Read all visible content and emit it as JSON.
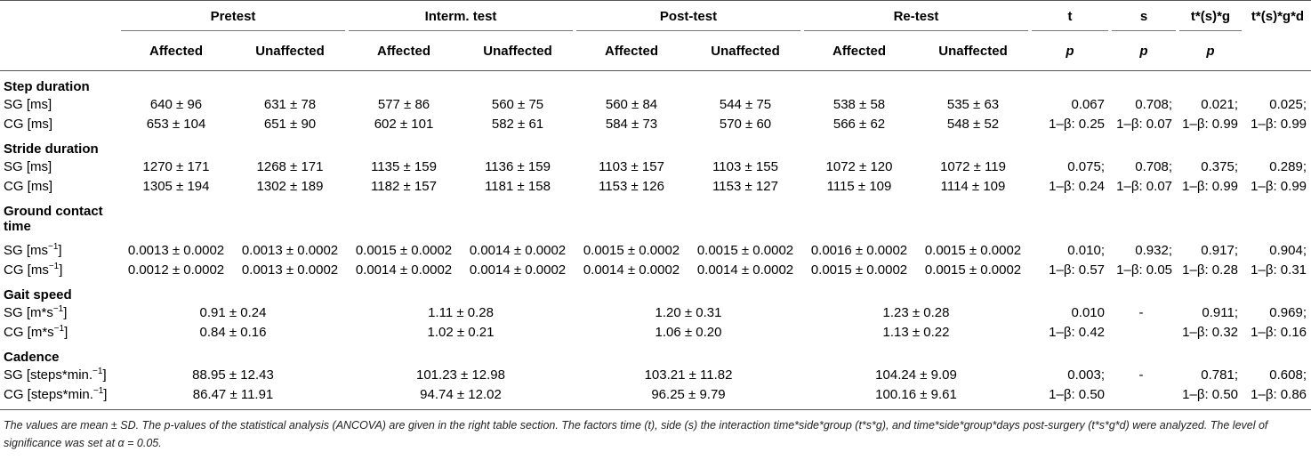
{
  "header": {
    "groups": [
      "Pretest",
      "Interm. test",
      "Post-test",
      "Re-test"
    ],
    "sub": [
      "Affected",
      "Unaffected"
    ],
    "stats": [
      "t",
      "s",
      "t*(s)*g",
      "t*(s)*g*d"
    ],
    "p_label": "p"
  },
  "sections": {
    "step": {
      "title": "Step duration",
      "rows": [
        {
          "label": "SG [ms]",
          "cells": [
            "640 ± 96",
            "631 ± 78",
            "577 ± 86",
            "560 ± 75",
            "560 ± 84",
            "544 ± 75",
            "538 ± 58",
            "535 ± 63"
          ],
          "stats": [
            "0.067",
            "0.708;",
            "0.021;",
            "0.025;"
          ]
        },
        {
          "label": "CG [ms]",
          "cells": [
            "653 ± 104",
            "651 ± 90",
            "602 ± 101",
            "582 ± 61",
            "584 ± 73",
            "570 ± 60",
            "566 ± 62",
            "548 ± 52"
          ],
          "stats": [
            "1–β: 0.25",
            "1–β: 0.07",
            "1–β: 0.99",
            "1–β: 0.99"
          ]
        }
      ]
    },
    "stride": {
      "title": "Stride duration",
      "rows": [
        {
          "label": "SG [ms]",
          "cells": [
            "1270 ± 171",
            "1268 ± 171",
            "1135 ± 159",
            "1136 ± 159",
            "1103 ± 157",
            "1103 ± 155",
            "1072 ± 120",
            "1072 ± 119"
          ],
          "stats": [
            "0.075;",
            "0.708;",
            "0.375;",
            "0.289;"
          ]
        },
        {
          "label": "CG [ms]",
          "cells": [
            "1305 ± 194",
            "1302 ± 189",
            "1182 ± 157",
            "1181 ± 158",
            "1153 ± 126",
            "1153 ± 127",
            "1115 ± 109",
            "1114 ± 109"
          ],
          "stats": [
            "1–β: 0.24",
            "1–β: 0.07",
            "1–β: 0.99",
            "1–β: 0.99"
          ]
        }
      ]
    },
    "contact": {
      "title_line1": "Ground contact",
      "title_line2": "time",
      "rows": [
        {
          "label": "SG [ms",
          "label_sup": "−1",
          "label_end": "]",
          "cells": [
            "0.0013 ± 0.0002",
            "0.0013 ± 0.0002",
            "0.0015 ± 0.0002",
            "0.0014 ± 0.0002",
            "0.0015 ± 0.0002",
            "0.0015 ± 0.0002",
            "0.0016 ± 0.0002",
            "0.0015 ± 0.0002"
          ],
          "stats": [
            "0.010;",
            "0.932;",
            "0.917;",
            "0.904;"
          ]
        },
        {
          "label": "CG [ms",
          "label_sup": "−1",
          "label_end": "]",
          "cells": [
            "0.0012 ± 0.0002",
            "0.0013 ± 0.0002",
            "0.0014 ± 0.0002",
            "0.0014 ± 0.0002",
            "0.0014 ± 0.0002",
            "0.0014 ± 0.0002",
            "0.0015 ± 0.0002",
            "0.0015 ± 0.0002"
          ],
          "stats": [
            "1–β: 0.57",
            "1–β: 0.05",
            "1–β: 0.28",
            "1–β: 0.31"
          ]
        }
      ]
    },
    "speed": {
      "title": "Gait speed",
      "rows": [
        {
          "label": "SG [m*s",
          "label_sup": "−1",
          "label_end": "]",
          "cells": [
            "0.91 ± 0.24",
            "1.11 ± 0.28",
            "1.20 ± 0.31",
            "1.23 ± 0.28"
          ],
          "stats": [
            "0.010",
            "-",
            "0.911;",
            "0.969;"
          ]
        },
        {
          "label": "CG [m*s",
          "label_sup": "−1",
          "label_end": "]",
          "cells": [
            "0.84 ± 0.16",
            "1.02 ± 0.21",
            "1.06 ± 0.20",
            "1.13 ± 0.22"
          ],
          "stats": [
            "1–β: 0.42",
            "",
            "1–β: 0.32",
            "1–β: 0.16"
          ]
        }
      ]
    },
    "cadence": {
      "title": "Cadence",
      "rows": [
        {
          "label": "SG [steps*min.",
          "label_sup": "−1",
          "label_end": "]",
          "cells": [
            "88.95 ± 12.43",
            "101.23 ± 12.98",
            "103.21 ± 11.82",
            "104.24 ± 9.09"
          ],
          "stats": [
            "0.003;",
            "-",
            "0.781;",
            "0.608;"
          ]
        },
        {
          "label": "CG [steps*min.",
          "label_sup": "−1",
          "label_end": "]",
          "cells": [
            "86.47 ± 11.91",
            "94.74 ± 12.02",
            "96.25 ± 9.79",
            "100.16 ± 9.61"
          ],
          "stats": [
            "1–β: 0.50",
            "",
            "1–β: 0.50",
            "1–β: 0.86"
          ]
        }
      ]
    }
  },
  "footnote": "The values are mean ± SD. The p-values of the statistical analysis (ANCOVA) are given in the right table section. The factors time (t), side (s) the interaction time*side*group (t*s*g), and time*side*group*days post-surgery (t*s*g*d) were analyzed. The level of significance was set at α = 0.05."
}
